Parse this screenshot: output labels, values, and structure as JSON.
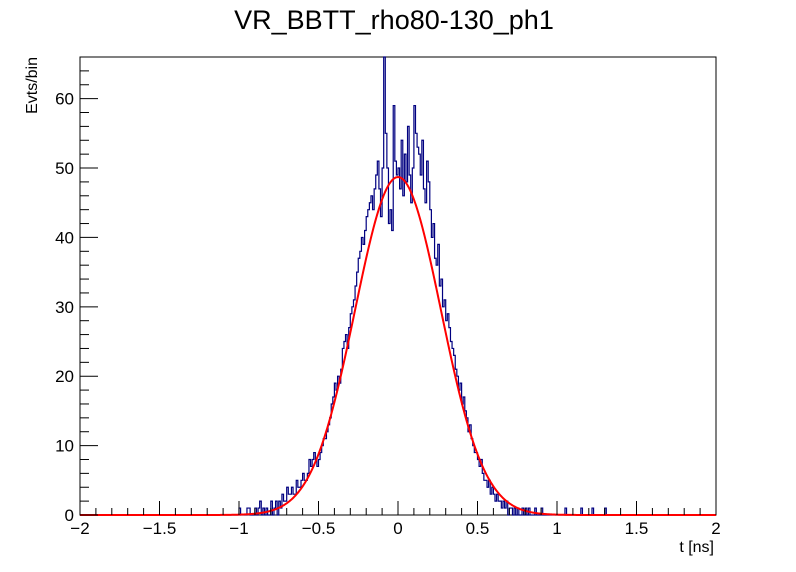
{
  "chart_data": {
    "type": "histogram",
    "title": "VR_BBTT_rho80-130_ph1",
    "xlabel": "t [ns]",
    "ylabel": "Evts/bin",
    "xlim": [
      -2,
      2
    ],
    "ylim": [
      0,
      66
    ],
    "x_ticks": [
      "−2",
      "−1.5",
      "−1",
      "−0.5",
      "0",
      "0.5",
      "1",
      "1.5",
      "2"
    ],
    "y_ticks": [
      "0",
      "10",
      "20",
      "30",
      "40",
      "50",
      "60"
    ],
    "bin_width": 0.01,
    "series": [
      {
        "name": "",
        "kind": "histogram",
        "color": "#000080",
        "bins": [
          [
            -1.0,
            1
          ],
          [
            -0.95,
            1
          ],
          [
            -0.94,
            1
          ],
          [
            -0.9,
            1
          ],
          [
            -0.88,
            1
          ],
          [
            -0.87,
            2
          ],
          [
            -0.85,
            1
          ],
          [
            -0.83,
            1
          ],
          [
            -0.8,
            2
          ],
          [
            -0.78,
            1
          ],
          [
            -0.77,
            2
          ],
          [
            -0.75,
            2
          ],
          [
            -0.74,
            1
          ],
          [
            -0.73,
            3
          ],
          [
            -0.72,
            2
          ],
          [
            -0.71,
            2
          ],
          [
            -0.7,
            4
          ],
          [
            -0.69,
            3
          ],
          [
            -0.68,
            3
          ],
          [
            -0.67,
            4
          ],
          [
            -0.66,
            3
          ],
          [
            -0.65,
            3
          ],
          [
            -0.64,
            5
          ],
          [
            -0.63,
            4
          ],
          [
            -0.62,
            4
          ],
          [
            -0.61,
            5
          ],
          [
            -0.6,
            6
          ],
          [
            -0.59,
            5
          ],
          [
            -0.58,
            5
          ],
          [
            -0.57,
            6
          ],
          [
            -0.56,
            8
          ],
          [
            -0.55,
            7
          ],
          [
            -0.54,
            8
          ],
          [
            -0.53,
            9
          ],
          [
            -0.52,
            8
          ],
          [
            -0.51,
            7
          ],
          [
            -0.5,
            8
          ],
          [
            -0.49,
            9
          ],
          [
            -0.48,
            10
          ],
          [
            -0.47,
            11
          ],
          [
            -0.46,
            11
          ],
          [
            -0.45,
            12
          ],
          [
            -0.44,
            13
          ],
          [
            -0.43,
            14
          ],
          [
            -0.42,
            16
          ],
          [
            -0.41,
            17
          ],
          [
            -0.4,
            19
          ],
          [
            -0.39,
            18
          ],
          [
            -0.38,
            20
          ],
          [
            -0.37,
            19
          ],
          [
            -0.36,
            21
          ],
          [
            -0.35,
            24
          ],
          [
            -0.34,
            25
          ],
          [
            -0.33,
            26
          ],
          [
            -0.32,
            24
          ],
          [
            -0.31,
            27
          ],
          [
            -0.3,
            29
          ],
          [
            -0.29,
            30
          ],
          [
            -0.28,
            31
          ],
          [
            -0.27,
            33
          ],
          [
            -0.26,
            35
          ],
          [
            -0.25,
            37
          ],
          [
            -0.24,
            38
          ],
          [
            -0.23,
            40
          ],
          [
            -0.22,
            39
          ],
          [
            -0.21,
            41
          ],
          [
            -0.2,
            43
          ],
          [
            -0.19,
            44
          ],
          [
            -0.18,
            45
          ],
          [
            -0.17,
            46
          ],
          [
            -0.16,
            44
          ],
          [
            -0.15,
            47
          ],
          [
            -0.14,
            49
          ],
          [
            -0.13,
            51
          ],
          [
            -0.12,
            47
          ],
          [
            -0.11,
            43
          ],
          [
            -0.1,
            50
          ],
          [
            -0.09,
            66
          ],
          [
            -0.08,
            55
          ],
          [
            -0.07,
            50
          ],
          [
            -0.06,
            42
          ],
          [
            -0.05,
            44
          ],
          [
            -0.04,
            41
          ],
          [
            -0.03,
            59
          ],
          [
            -0.02,
            51
          ],
          [
            -0.01,
            49
          ],
          [
            0.0,
            50
          ],
          [
            0.01,
            47
          ],
          [
            0.02,
            54
          ],
          [
            0.03,
            46
          ],
          [
            0.04,
            52
          ],
          [
            0.05,
            48
          ],
          [
            0.06,
            56
          ],
          [
            0.07,
            49
          ],
          [
            0.08,
            45
          ],
          [
            0.09,
            50
          ],
          [
            0.1,
            59
          ],
          [
            0.11,
            55
          ],
          [
            0.12,
            53
          ],
          [
            0.13,
            52
          ],
          [
            0.14,
            49
          ],
          [
            0.15,
            54
          ],
          [
            0.16,
            47
          ],
          [
            0.17,
            45
          ],
          [
            0.18,
            51
          ],
          [
            0.19,
            48
          ],
          [
            0.2,
            44
          ],
          [
            0.21,
            40
          ],
          [
            0.22,
            42
          ],
          [
            0.23,
            37
          ],
          [
            0.24,
            36
          ],
          [
            0.25,
            39
          ],
          [
            0.26,
            33
          ],
          [
            0.27,
            34
          ],
          [
            0.28,
            30
          ],
          [
            0.29,
            31
          ],
          [
            0.3,
            28
          ],
          [
            0.31,
            29
          ],
          [
            0.32,
            27
          ],
          [
            0.33,
            25
          ],
          [
            0.34,
            24
          ],
          [
            0.35,
            23
          ],
          [
            0.36,
            21
          ],
          [
            0.37,
            20
          ],
          [
            0.38,
            18
          ],
          [
            0.39,
            19
          ],
          [
            0.4,
            16
          ],
          [
            0.41,
            17
          ],
          [
            0.42,
            15
          ],
          [
            0.43,
            14
          ],
          [
            0.44,
            12
          ],
          [
            0.45,
            13
          ],
          [
            0.46,
            11
          ],
          [
            0.47,
            10
          ],
          [
            0.48,
            9
          ],
          [
            0.49,
            9
          ],
          [
            0.5,
            8
          ],
          [
            0.51,
            7
          ],
          [
            0.52,
            8
          ],
          [
            0.53,
            6
          ],
          [
            0.54,
            5
          ],
          [
            0.55,
            5
          ],
          [
            0.56,
            4
          ],
          [
            0.57,
            5
          ],
          [
            0.58,
            3
          ],
          [
            0.59,
            4
          ],
          [
            0.6,
            3
          ],
          [
            0.61,
            2
          ],
          [
            0.62,
            3
          ],
          [
            0.63,
            2
          ],
          [
            0.64,
            2
          ],
          [
            0.65,
            1
          ],
          [
            0.66,
            2
          ],
          [
            0.67,
            1
          ],
          [
            0.68,
            2
          ],
          [
            0.7,
            1
          ],
          [
            0.71,
            1
          ],
          [
            0.73,
            1
          ],
          [
            0.75,
            1
          ],
          [
            0.78,
            1
          ],
          [
            0.8,
            1
          ],
          [
            0.82,
            1
          ],
          [
            0.86,
            1
          ],
          [
            0.9,
            1
          ],
          [
            1.05,
            1
          ],
          [
            1.15,
            1
          ],
          [
            1.22,
            1
          ],
          [
            1.3,
            1
          ]
        ]
      },
      {
        "name": "",
        "kind": "fit",
        "function": "gaussian",
        "color": "#ff0000",
        "amplitude": 48.7,
        "mean": 0.0,
        "sigma": 0.27
      }
    ],
    "grid": false,
    "legend": "none"
  }
}
